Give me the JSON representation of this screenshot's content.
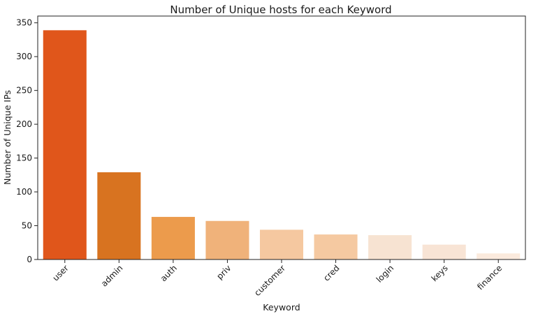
{
  "chart_data": {
    "type": "bar",
    "title": "Number of Unique hosts for each Keyword",
    "xlabel": "Keyword",
    "ylabel": "Number of Unique IPs",
    "categories": [
      "user",
      "admin",
      "auth",
      "priv",
      "customer",
      "cred",
      "login",
      "keys",
      "finance"
    ],
    "values": [
      339,
      129,
      63,
      57,
      44,
      37,
      36,
      22,
      9
    ],
    "colors": [
      "#e0561b",
      "#d87320",
      "#ec9b4c",
      "#f0b27a",
      "#f5c8a0",
      "#f5c9a1",
      "#f7e3d2",
      "#f8e4d5",
      "#fbeadd"
    ],
    "ylim": [
      0,
      360
    ],
    "yticks": [
      0,
      50,
      100,
      150,
      200,
      250,
      300,
      350
    ],
    "grid": false,
    "legend": "none"
  }
}
